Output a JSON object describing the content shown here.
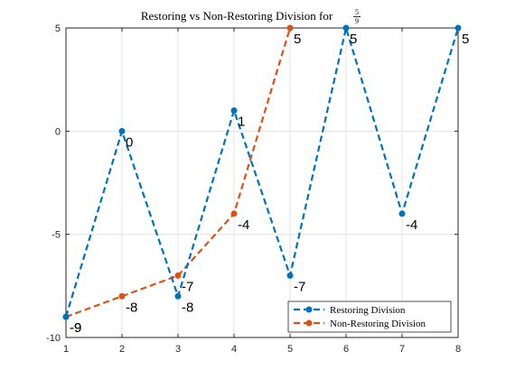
{
  "chart_data": {
    "type": "line",
    "title": "Restoring vs Non-Restoring Division for",
    "title_fraction": {
      "numerator": "5",
      "denominator": "9"
    },
    "xlabel": "",
    "ylabel": "",
    "xlim": [
      1,
      8
    ],
    "ylim": [
      -10,
      5
    ],
    "xticks": [
      1,
      2,
      3,
      4,
      5,
      6,
      7,
      8
    ],
    "yticks": [
      -10,
      -5,
      0,
      5
    ],
    "grid": true,
    "legend_position": "bottom-right",
    "series": [
      {
        "name": "Restoring Division",
        "color": "#0072BD",
        "line_style": "dashed",
        "marker": "circle",
        "x": [
          1,
          2,
          3,
          4,
          5,
          6,
          7,
          8
        ],
        "y": [
          -9,
          0,
          -8,
          1,
          -7,
          5,
          -4,
          5
        ],
        "labels": [
          "-9",
          "0",
          "-8",
          "1",
          "-7",
          "5",
          "-4",
          "5"
        ]
      },
      {
        "name": "Non-Restoring Division",
        "color": "#D95319",
        "line_style": "dashed",
        "marker": "circle",
        "x": [
          1,
          2,
          3,
          4,
          5
        ],
        "y": [
          -9,
          -8,
          -7,
          -4,
          5
        ],
        "labels": [
          "-9",
          "-8",
          "-7",
          "-4",
          "5"
        ]
      }
    ]
  }
}
